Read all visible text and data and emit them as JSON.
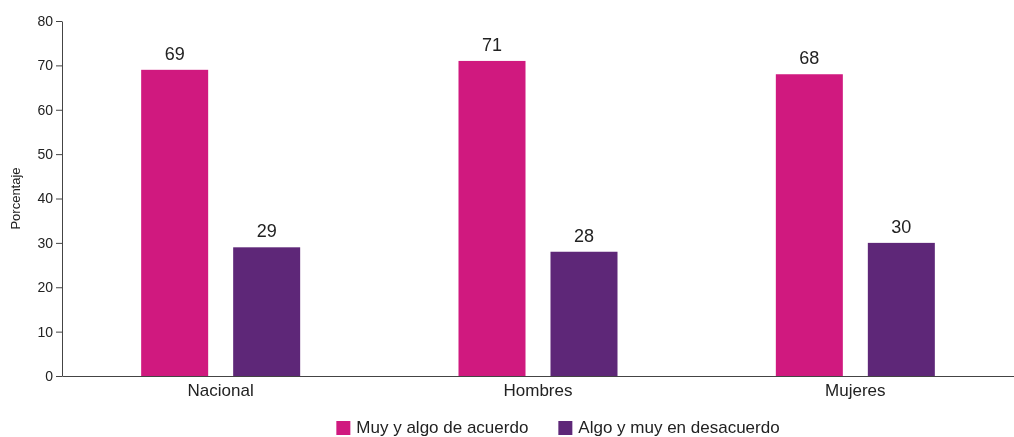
{
  "chart_data": {
    "type": "bar",
    "ylabel": "Porcentaje",
    "categories": [
      "Nacional",
      "Hombres",
      "Mujeres"
    ],
    "series": [
      {
        "name": "Muy y algo de acuerdo",
        "color": "#d0197f",
        "values": [
          69,
          71,
          68
        ]
      },
      {
        "name": "Algo y muy en desacuerdo",
        "color": "#5e2778",
        "values": [
          29,
          28,
          30
        ]
      }
    ],
    "ylim": [
      0,
      80
    ],
    "yticks": [
      0,
      10,
      20,
      30,
      40,
      50,
      60,
      70,
      80
    ],
    "data_labels": true,
    "grid": false,
    "legend": "bottom"
  }
}
